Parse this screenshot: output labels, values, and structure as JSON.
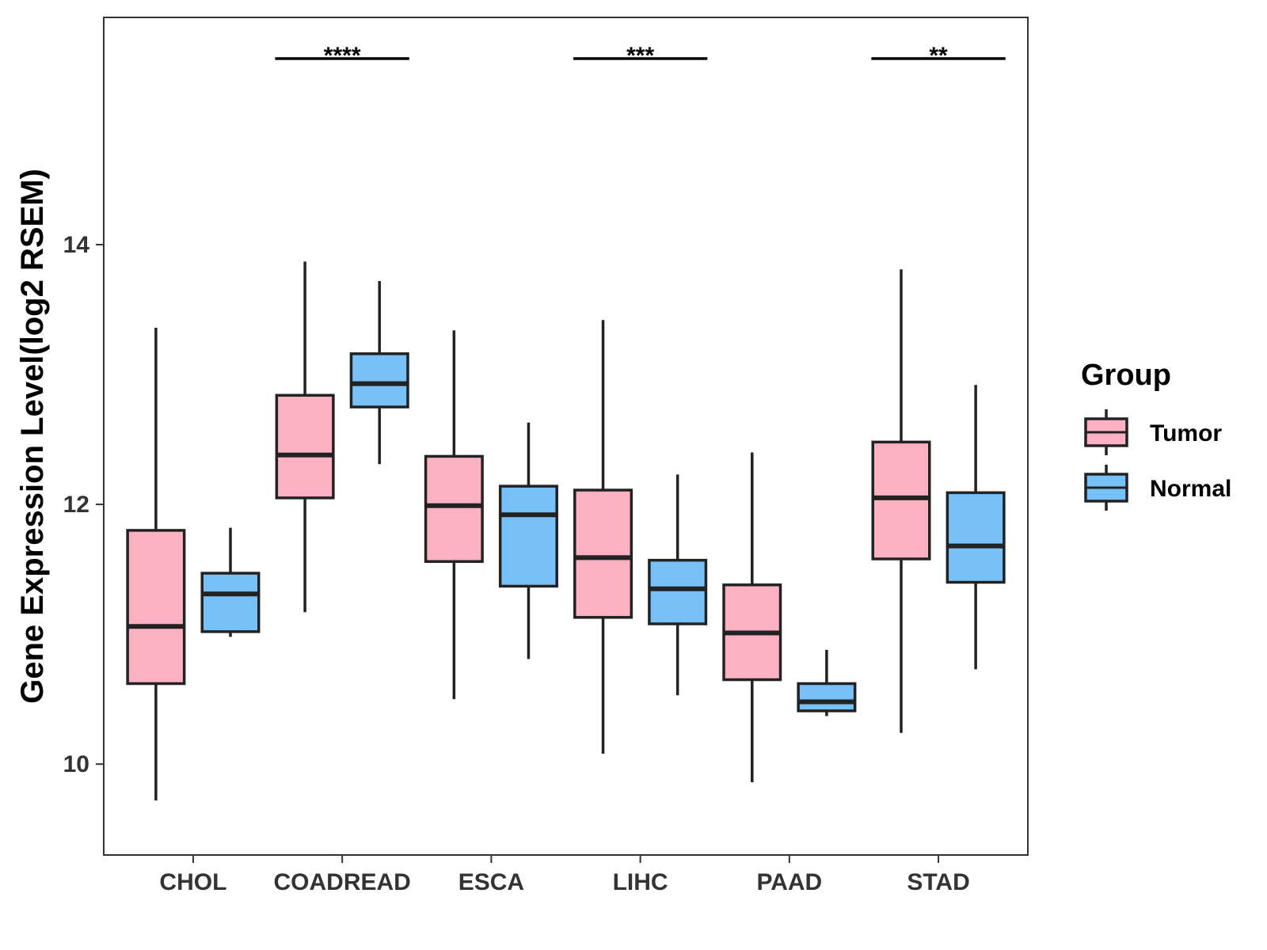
{
  "chart_data": {
    "type": "boxplot",
    "title": "",
    "xlabel": "",
    "ylabel": "Gene Expression Level(log2 RSEM)",
    "ylim": [
      9.3,
      15.75
    ],
    "yticks": [
      10,
      12,
      14
    ],
    "ytick_labels": [
      "10",
      "12",
      "14"
    ],
    "grid": false,
    "categories": [
      "CHOL",
      "COADREAD",
      "ESCA",
      "LIHC",
      "PAAD",
      "STAD"
    ],
    "legend": {
      "title": "Group",
      "position": "right"
    },
    "series": [
      {
        "name": "Tumor",
        "color": "#FBB1C2",
        "boxes": [
          {
            "min": 9.72,
            "q1": 10.62,
            "median": 11.06,
            "q3": 11.8,
            "max": 13.36
          },
          {
            "min": 11.17,
            "q1": 12.05,
            "median": 12.38,
            "q3": 12.84,
            "max": 13.87
          },
          {
            "min": 10.5,
            "q1": 11.56,
            "median": 11.99,
            "q3": 12.37,
            "max": 13.34
          },
          {
            "min": 10.08,
            "q1": 11.13,
            "median": 11.59,
            "q3": 12.11,
            "max": 13.42
          },
          {
            "min": 9.86,
            "q1": 10.65,
            "median": 11.01,
            "q3": 11.38,
            "max": 12.4
          },
          {
            "min": 10.24,
            "q1": 11.58,
            "median": 12.05,
            "q3": 12.48,
            "max": 13.81
          }
        ]
      },
      {
        "name": "Normal",
        "color": "#78C1F8",
        "boxes": [
          {
            "min": 10.98,
            "q1": 11.02,
            "median": 11.31,
            "q3": 11.47,
            "max": 11.82
          },
          {
            "min": 12.31,
            "q1": 12.75,
            "median": 12.93,
            "q3": 13.16,
            "max": 13.72
          },
          {
            "min": 10.81,
            "q1": 11.37,
            "median": 11.92,
            "q3": 12.14,
            "max": 12.63
          },
          {
            "min": 10.53,
            "q1": 11.08,
            "median": 11.35,
            "q3": 11.57,
            "max": 12.23
          },
          {
            "min": 10.37,
            "q1": 10.41,
            "median": 10.48,
            "q3": 10.62,
            "max": 10.88
          },
          {
            "min": 10.73,
            "q1": 11.4,
            "median": 11.68,
            "q3": 12.09,
            "max": 12.92
          }
        ]
      }
    ],
    "annotations": [
      {
        "category": "COADREAD",
        "label": "****"
      },
      {
        "category": "LIHC",
        "label": "***"
      },
      {
        "category": "STAD",
        "label": "**"
      }
    ],
    "colors": {
      "outline": "#222222",
      "panel_border": "#333333",
      "tick_text": "#333333"
    }
  }
}
